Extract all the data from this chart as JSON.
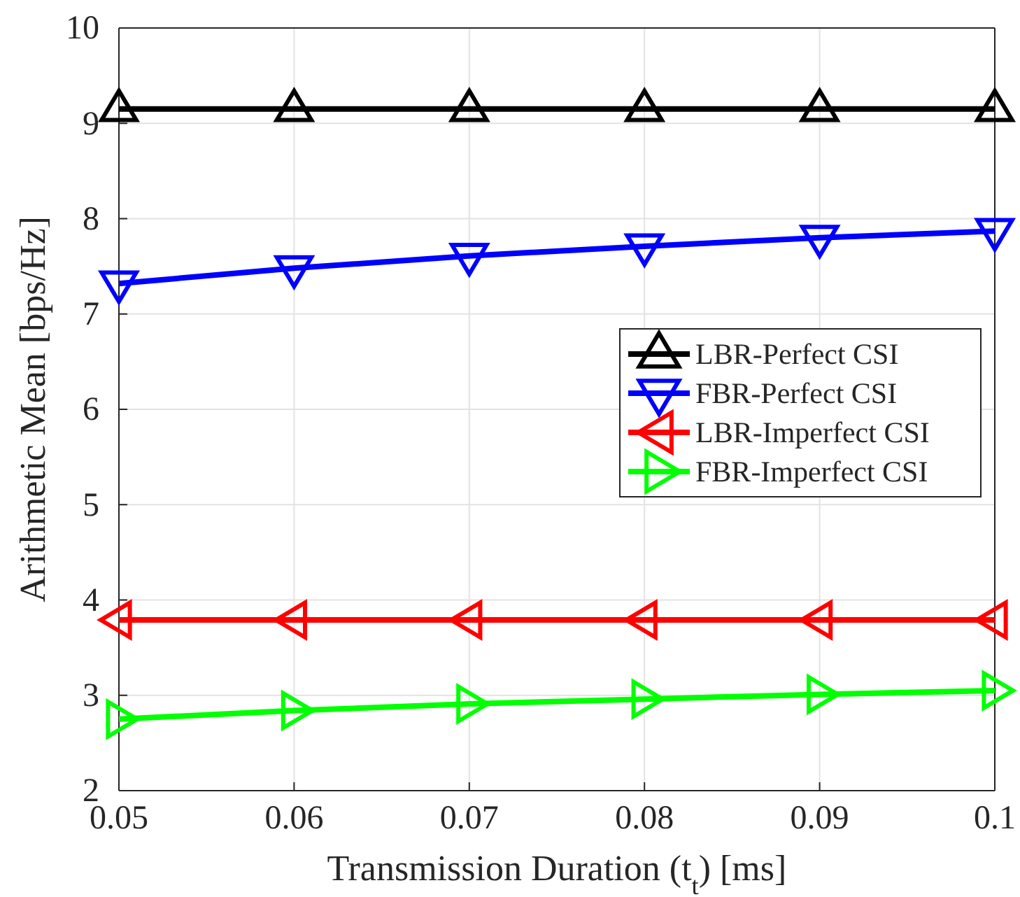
{
  "chart_data": {
    "type": "line",
    "xlabel": "Transmission Duration (t$_{t}$) [ms]",
    "ylabel": "Arithmetic Mean [bps/Hz]",
    "x": [
      0.05,
      0.06,
      0.07,
      0.08,
      0.09,
      0.1
    ],
    "xlim": [
      0.05,
      0.1
    ],
    "xticks": [
      0.05,
      0.06,
      0.07,
      0.08,
      0.09,
      0.1
    ],
    "ylim": [
      2,
      10
    ],
    "yticks": [
      2,
      3,
      4,
      5,
      6,
      7,
      8,
      9,
      10
    ],
    "grid": true,
    "legend": "right",
    "line_style": "solid",
    "series": [
      {
        "name": "LBR-Perfect CSI",
        "color": "#000000",
        "marker": "triangle-up",
        "values": [
          9.15,
          9.15,
          9.15,
          9.15,
          9.15,
          9.15
        ]
      },
      {
        "name": "FBR-Perfect CSI",
        "color": "#0000ff",
        "marker": "triangle-down",
        "values": [
          7.32,
          7.48,
          7.61,
          7.71,
          7.8,
          7.87
        ]
      },
      {
        "name": "LBR-Imperfect CSI",
        "color": "#ff0000",
        "marker": "triangle-left",
        "values": [
          3.79,
          3.79,
          3.79,
          3.79,
          3.79,
          3.79
        ]
      },
      {
        "name": "FBR-Imperfect CSI",
        "color": "#00ff00",
        "marker": "triangle-right",
        "values": [
          2.75,
          2.84,
          2.91,
          2.96,
          3.01,
          3.05
        ]
      }
    ]
  }
}
